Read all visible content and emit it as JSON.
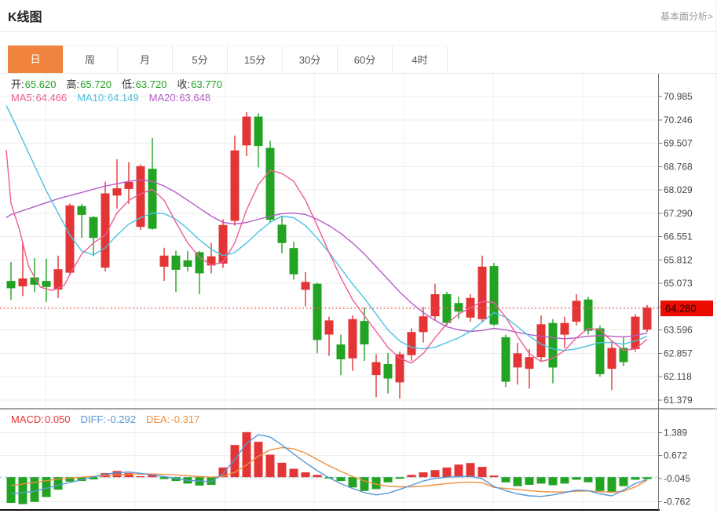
{
  "header": {
    "title": "K线图",
    "link": "基本面分析>"
  },
  "tabs": {
    "active": 0,
    "items": [
      "日",
      "周",
      "月",
      "5分",
      "15分",
      "30分",
      "60分",
      "4时"
    ]
  },
  "price_legend": [
    {
      "label": "开:",
      "value": "65.620"
    },
    {
      "label": "高:",
      "value": "65.720"
    },
    {
      "label": "低:",
      "value": "63.720"
    },
    {
      "label": "收:",
      "value": "63.770"
    }
  ],
  "ma_legend": [
    {
      "label": "MA5:",
      "value": "64.466",
      "color": "ma5"
    },
    {
      "label": "MA10:",
      "value": "64.149",
      "color": "ma10"
    },
    {
      "label": "MA20:",
      "value": "63.648",
      "color": "ma20"
    }
  ],
  "macd_legend": [
    {
      "label": "MACD:",
      "value": "0.050",
      "color": "up"
    },
    {
      "label": "DIFF:",
      "value": "-0.292",
      "color": "diff"
    },
    {
      "label": "DEA:",
      "value": "-0.317",
      "color": "dea"
    }
  ],
  "colors": {
    "up": "#e33535",
    "down": "#23a323",
    "ma5": "#ed5d96",
    "ma10": "#49c2e3",
    "ma20": "#b45cc8",
    "diff": "#5499d8",
    "dea": "#ef8f41",
    "value_green": "#23a323",
    "accent": "#f0843f",
    "grid": "#ececec",
    "grid_v": "#f2f2f2",
    "axis": "#777",
    "tick_text": "#444",
    "price_line": "#f25c5c",
    "price_box": "#ec0c00",
    "price_box_text": "#1a0000",
    "zero_dash": "#a8d8ee",
    "pane_border": "#444",
    "bottom_line": "#111"
  },
  "chart_data": {
    "type": "candlestick+macd",
    "title": "K线图 daily candlestick with MA5/MA10/MA20 and MACD",
    "ylim_price": [
      61.379,
      70.985
    ],
    "ylim_macd": [
      -0.98,
      1.45
    ],
    "grid": true,
    "current_price": {
      "value": 64.28,
      "label": "64.280"
    },
    "price_ticks": [
      {
        "value": 70.985,
        "label": "70.985"
      },
      {
        "value": 70.246,
        "label": "70.246"
      },
      {
        "value": 69.507,
        "label": "69.507"
      },
      {
        "value": 68.768,
        "label": "68.768"
      },
      {
        "value": 68.029,
        "label": "68.029"
      },
      {
        "value": 67.29,
        "label": "67.290"
      },
      {
        "value": 66.551,
        "label": "66.551"
      },
      {
        "value": 65.812,
        "label": "65.812"
      },
      {
        "value": 65.073,
        "label": "65.073"
      },
      {
        "value": 64.334,
        "label": "",
        "hide_label": true
      },
      {
        "value": 63.596,
        "label": "63.596"
      },
      {
        "value": 62.857,
        "label": "62.857"
      },
      {
        "value": 62.118,
        "label": "62.118"
      },
      {
        "value": 61.379,
        "label": "61.379"
      }
    ],
    "macd_ticks": [
      {
        "value": 1.389,
        "label": "1.389"
      },
      {
        "value": 0.672,
        "label": "0.672"
      },
      {
        "value": -0.045,
        "label": "-0.045"
      },
      {
        "value": -0.762,
        "label": "-0.762"
      }
    ],
    "candles_ohlc": [
      [
        65.15,
        65.75,
        64.55,
        64.92
      ],
      [
        64.98,
        66.39,
        64.67,
        65.23
      ],
      [
        65.26,
        65.87,
        64.79,
        65.03
      ],
      [
        65.15,
        65.85,
        64.48,
        64.96
      ],
      [
        64.88,
        65.95,
        64.61,
        65.52
      ],
      [
        65.41,
        67.6,
        65.35,
        67.54
      ],
      [
        67.52,
        67.58,
        66.51,
        67.24
      ],
      [
        67.17,
        67.2,
        65.93,
        66.51
      ],
      [
        65.57,
        68.29,
        65.45,
        67.92
      ],
      [
        67.85,
        69.0,
        67.44,
        68.08
      ],
      [
        68.06,
        68.91,
        67.59,
        68.28
      ],
      [
        66.86,
        68.84,
        66.76,
        68.78
      ],
      [
        68.7,
        69.67,
        66.77,
        66.8
      ],
      [
        65.6,
        66.2,
        65.15,
        65.95
      ],
      [
        65.95,
        66.1,
        64.8,
        65.5
      ],
      [
        65.8,
        66.1,
        65.45,
        65.6
      ],
      [
        66.06,
        66.1,
        64.73,
        65.39
      ],
      [
        65.64,
        66.35,
        65.39,
        65.93
      ],
      [
        65.7,
        67.1,
        65.56,
        66.92
      ],
      [
        67.05,
        69.75,
        66.9,
        69.28
      ],
      [
        69.44,
        70.49,
        69.1,
        70.35
      ],
      [
        70.35,
        70.46,
        68.74,
        69.42
      ],
      [
        69.36,
        69.58,
        66.98,
        67.09
      ],
      [
        66.93,
        67.18,
        66.02,
        66.35
      ],
      [
        66.19,
        66.39,
        65.19,
        65.36
      ],
      [
        64.87,
        65.43,
        64.35,
        65.12
      ],
      [
        65.06,
        65.1,
        62.86,
        63.28
      ],
      [
        63.45,
        64.02,
        62.78,
        63.9
      ],
      [
        63.14,
        63.45,
        62.17,
        62.67
      ],
      [
        62.7,
        64.06,
        62.3,
        63.94
      ],
      [
        63.88,
        64.31,
        62.62,
        63.14
      ],
      [
        62.17,
        62.83,
        61.47,
        62.58
      ],
      [
        62.52,
        62.87,
        61.59,
        62.06
      ],
      [
        61.94,
        62.91,
        61.43,
        62.83
      ],
      [
        62.8,
        63.65,
        62.62,
        63.53
      ],
      [
        63.53,
        64.32,
        63.2,
        64.03
      ],
      [
        64.03,
        65.06,
        63.9,
        64.73
      ],
      [
        64.73,
        64.81,
        63.74,
        63.82
      ],
      [
        64.45,
        64.65,
        63.95,
        64.18
      ],
      [
        63.99,
        64.73,
        63.86,
        64.61
      ],
      [
        63.94,
        65.95,
        63.86,
        65.6
      ],
      [
        65.62,
        65.72,
        63.72,
        63.77
      ],
      [
        63.37,
        63.45,
        61.79,
        61.96
      ],
      [
        62.41,
        63.19,
        61.87,
        62.86
      ],
      [
        62.37,
        63.0,
        61.74,
        62.74
      ],
      [
        62.74,
        64.06,
        62.62,
        63.78
      ],
      [
        63.82,
        63.94,
        61.91,
        62.41
      ],
      [
        63.45,
        64.02,
        63.03,
        63.82
      ],
      [
        63.86,
        64.73,
        63.74,
        64.52
      ],
      [
        64.56,
        64.65,
        63.45,
        63.57
      ],
      [
        63.65,
        63.74,
        62.12,
        62.2
      ],
      [
        62.37,
        63.24,
        61.7,
        63.03
      ],
      [
        63.03,
        63.36,
        62.45,
        62.58
      ],
      [
        62.99,
        64.1,
        62.91,
        64.02
      ],
      [
        63.61,
        64.39,
        63.53,
        64.31
      ]
    ],
    "ma5": [
      [
        -0.4,
        69.3
      ],
      [
        0,
        67.6
      ],
      [
        0.7,
        66.8
      ],
      [
        1.5,
        65.6
      ],
      [
        2.5,
        64.95
      ],
      [
        3.5,
        64.85
      ],
      [
        4.5,
        65.0
      ],
      [
        5,
        65.35
      ],
      [
        6,
        66.0
      ],
      [
        7,
        66.35
      ],
      [
        8,
        66.6
      ],
      [
        9,
        67.3
      ],
      [
        10,
        67.7
      ],
      [
        11,
        67.9
      ],
      [
        12,
        68.05
      ],
      [
        13,
        67.7
      ],
      [
        14,
        67.0
      ],
      [
        15,
        66.35
      ],
      [
        16,
        65.9
      ],
      [
        17,
        65.65
      ],
      [
        18,
        65.75
      ],
      [
        19,
        66.35
      ],
      [
        20,
        67.4
      ],
      [
        21,
        68.2
      ],
      [
        22,
        68.65
      ],
      [
        23,
        68.55
      ],
      [
        24,
        68.3
      ],
      [
        25,
        67.7
      ],
      [
        26,
        66.9
      ],
      [
        27,
        66.05
      ],
      [
        28,
        65.25
      ],
      [
        29,
        64.55
      ],
      [
        30,
        64.05
      ],
      [
        31,
        63.55
      ],
      [
        32,
        63.05
      ],
      [
        33,
        62.7
      ],
      [
        34,
        62.55
      ],
      [
        35,
        62.85
      ],
      [
        36,
        63.35
      ],
      [
        37,
        63.8
      ],
      [
        38,
        64.1
      ],
      [
        39,
        64.3
      ],
      [
        40,
        64.5
      ],
      [
        41,
        64.47
      ],
      [
        42,
        64.0
      ],
      [
        43,
        63.4
      ],
      [
        44,
        62.85
      ],
      [
        45,
        62.6
      ],
      [
        46,
        62.7
      ],
      [
        47,
        62.95
      ],
      [
        48,
        63.35
      ],
      [
        49,
        63.65
      ],
      [
        50,
        63.6
      ],
      [
        51,
        63.25
      ],
      [
        52,
        62.95
      ],
      [
        53,
        63.0
      ],
      [
        54,
        63.3
      ]
    ],
    "ma10": [
      [
        -0.4,
        70.7
      ],
      [
        0,
        70.4
      ],
      [
        1,
        69.6
      ],
      [
        2,
        68.8
      ],
      [
        3,
        68.0
      ],
      [
        4,
        67.3
      ],
      [
        5,
        66.6
      ],
      [
        6,
        66.1
      ],
      [
        7,
        65.97
      ],
      [
        8,
        66.2
      ],
      [
        9,
        66.6
      ],
      [
        10,
        66.95
      ],
      [
        11,
        67.15
      ],
      [
        12,
        67.3
      ],
      [
        13,
        67.28
      ],
      [
        14,
        67.1
      ],
      [
        15,
        66.8
      ],
      [
        16,
        66.45
      ],
      [
        17,
        66.15
      ],
      [
        18,
        65.95
      ],
      [
        19,
        66.05
      ],
      [
        20,
        66.35
      ],
      [
        21,
        66.7
      ],
      [
        22,
        67.0
      ],
      [
        23,
        67.2
      ],
      [
        24,
        67.15
      ],
      [
        25,
        66.9
      ],
      [
        26,
        66.5
      ],
      [
        27,
        66.05
      ],
      [
        28,
        65.55
      ],
      [
        29,
        65.05
      ],
      [
        30,
        64.6
      ],
      [
        31,
        64.1
      ],
      [
        32,
        63.6
      ],
      [
        33,
        63.25
      ],
      [
        34,
        63.05
      ],
      [
        35,
        63.0
      ],
      [
        36,
        63.05
      ],
      [
        37,
        63.2
      ],
      [
        38,
        63.35
      ],
      [
        39,
        63.55
      ],
      [
        40,
        63.85
      ],
      [
        41,
        64.15
      ],
      [
        42,
        64.0
      ],
      [
        43,
        63.7
      ],
      [
        44,
        63.4
      ],
      [
        45,
        63.15
      ],
      [
        46,
        63.0
      ],
      [
        47,
        62.95
      ],
      [
        48,
        63.0
      ],
      [
        49,
        63.1
      ],
      [
        50,
        63.2
      ],
      [
        51,
        63.2
      ],
      [
        52,
        63.15
      ],
      [
        53,
        63.25
      ],
      [
        54,
        63.4
      ]
    ],
    "ma20": [
      [
        -0.4,
        67.15
      ],
      [
        0,
        67.25
      ],
      [
        2,
        67.5
      ],
      [
        4,
        67.75
      ],
      [
        6,
        67.95
      ],
      [
        8,
        68.15
      ],
      [
        10,
        68.3
      ],
      [
        11,
        68.35
      ],
      [
        12,
        68.3
      ],
      [
        13,
        68.15
      ],
      [
        14,
        67.95
      ],
      [
        15,
        67.7
      ],
      [
        16,
        67.45
      ],
      [
        17,
        67.2
      ],
      [
        18,
        67.0
      ],
      [
        19,
        66.95
      ],
      [
        20,
        67.0
      ],
      [
        21,
        67.1
      ],
      [
        22,
        67.2
      ],
      [
        23,
        67.28
      ],
      [
        24,
        67.3
      ],
      [
        25,
        67.25
      ],
      [
        26,
        67.1
      ],
      [
        27,
        66.9
      ],
      [
        28,
        66.65
      ],
      [
        29,
        66.35
      ],
      [
        30,
        66.0
      ],
      [
        31,
        65.6
      ],
      [
        32,
        65.2
      ],
      [
        33,
        64.8
      ],
      [
        34,
        64.45
      ],
      [
        35,
        64.15
      ],
      [
        36,
        63.9
      ],
      [
        37,
        63.7
      ],
      [
        38,
        63.6
      ],
      [
        39,
        63.55
      ],
      [
        40,
        63.58
      ],
      [
        41,
        63.65
      ],
      [
        42,
        63.6
      ],
      [
        43,
        63.52
      ],
      [
        44,
        63.45
      ],
      [
        45,
        63.4
      ],
      [
        46,
        63.35
      ],
      [
        47,
        63.32
      ],
      [
        48,
        63.35
      ],
      [
        49,
        63.4
      ],
      [
        50,
        63.42
      ],
      [
        51,
        63.4
      ],
      [
        52,
        63.38
      ],
      [
        53,
        63.42
      ],
      [
        54,
        63.5
      ]
    ],
    "macd_hist": [
      -0.8,
      -0.84,
      -0.77,
      -0.62,
      -0.39,
      -0.14,
      -0.12,
      -0.07,
      0.13,
      0.19,
      0.13,
      0.03,
      0.08,
      -0.06,
      -0.12,
      -0.2,
      -0.26,
      -0.24,
      0.3,
      1.0,
      1.4,
      1.1,
      0.7,
      0.45,
      0.26,
      0.15,
      0.07,
      -0.04,
      -0.12,
      -0.32,
      -0.43,
      -0.37,
      -0.16,
      -0.05,
      0.07,
      0.15,
      0.22,
      0.3,
      0.39,
      0.44,
      0.32,
      0.05,
      -0.16,
      -0.28,
      -0.24,
      -0.2,
      -0.25,
      -0.2,
      -0.08,
      -0.16,
      -0.43,
      -0.47,
      -0.28,
      -0.08,
      -0.06
    ],
    "diff_line": [
      [
        0,
        -0.52
      ],
      [
        2,
        -0.44
      ],
      [
        4,
        -0.25
      ],
      [
        6,
        -0.08
      ],
      [
        8,
        0.1
      ],
      [
        10,
        0.16
      ],
      [
        11,
        0.12
      ],
      [
        13,
        0.02
      ],
      [
        15,
        -0.1
      ],
      [
        17,
        -0.14
      ],
      [
        18,
        0.1
      ],
      [
        19,
        0.55
      ],
      [
        20,
        1.05
      ],
      [
        21,
        1.32
      ],
      [
        22,
        1.25
      ],
      [
        23,
        1.0
      ],
      [
        24,
        0.72
      ],
      [
        25,
        0.45
      ],
      [
        26,
        0.2
      ],
      [
        27,
        -0.02
      ],
      [
        28,
        -0.2
      ],
      [
        29,
        -0.35
      ],
      [
        30,
        -0.48
      ],
      [
        31,
        -0.55
      ],
      [
        32,
        -0.5
      ],
      [
        33,
        -0.38
      ],
      [
        34,
        -0.25
      ],
      [
        35,
        -0.12
      ],
      [
        36,
        -0.04
      ],
      [
        37,
        0.0
      ],
      [
        38,
        0.02
      ],
      [
        39,
        0.03
      ],
      [
        40,
        -0.05
      ],
      [
        41,
        -0.29
      ],
      [
        42,
        -0.42
      ],
      [
        43,
        -0.52
      ],
      [
        44,
        -0.58
      ],
      [
        45,
        -0.6
      ],
      [
        46,
        -0.55
      ],
      [
        47,
        -0.48
      ],
      [
        48,
        -0.4
      ],
      [
        49,
        -0.42
      ],
      [
        50,
        -0.52
      ],
      [
        51,
        -0.58
      ],
      [
        52,
        -0.4
      ],
      [
        53,
        -0.2
      ],
      [
        54,
        -0.07
      ]
    ],
    "dea_line": [
      [
        0,
        -0.26
      ],
      [
        2,
        -0.16
      ],
      [
        4,
        -0.06
      ],
      [
        6,
        0.0
      ],
      [
        8,
        0.05
      ],
      [
        10,
        0.09
      ],
      [
        12,
        0.1
      ],
      [
        14,
        0.07
      ],
      [
        16,
        0.02
      ],
      [
        17,
        0.0
      ],
      [
        18,
        0.03
      ],
      [
        19,
        0.15
      ],
      [
        20,
        0.38
      ],
      [
        21,
        0.65
      ],
      [
        22,
        0.85
      ],
      [
        23,
        0.92
      ],
      [
        24,
        0.88
      ],
      [
        25,
        0.75
      ],
      [
        26,
        0.55
      ],
      [
        27,
        0.35
      ],
      [
        28,
        0.18
      ],
      [
        29,
        0.02
      ],
      [
        30,
        -0.12
      ],
      [
        31,
        -0.22
      ],
      [
        32,
        -0.28
      ],
      [
        33,
        -0.3
      ],
      [
        34,
        -0.3
      ],
      [
        35,
        -0.28
      ],
      [
        36,
        -0.24
      ],
      [
        37,
        -0.2
      ],
      [
        38,
        -0.17
      ],
      [
        39,
        -0.15
      ],
      [
        40,
        -0.17
      ],
      [
        41,
        -0.32
      ],
      [
        42,
        -0.35
      ],
      [
        43,
        -0.38
      ],
      [
        44,
        -0.42
      ],
      [
        45,
        -0.45
      ],
      [
        46,
        -0.46
      ],
      [
        47,
        -0.46
      ],
      [
        48,
        -0.44
      ],
      [
        49,
        -0.43
      ],
      [
        50,
        -0.45
      ],
      [
        51,
        -0.47
      ],
      [
        52,
        -0.44
      ],
      [
        53,
        -0.3
      ],
      [
        54,
        -0.1
      ]
    ]
  }
}
